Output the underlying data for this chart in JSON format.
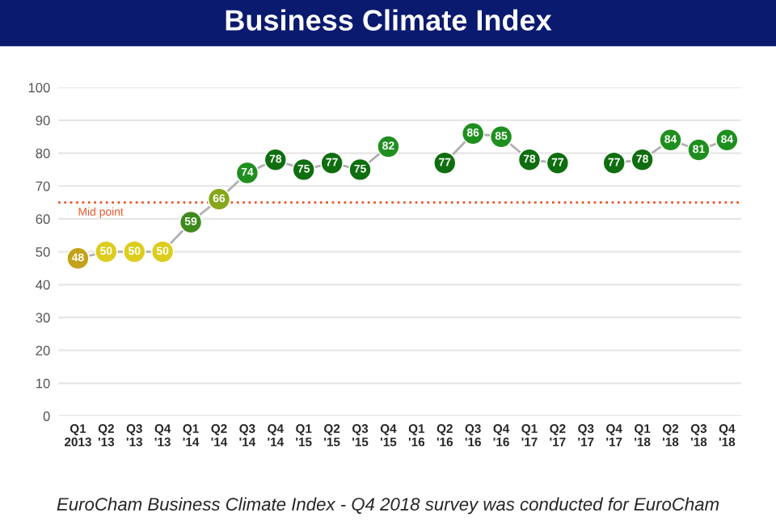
{
  "chart_data": {
    "type": "line",
    "title": "Business Climate Index",
    "categories": [
      "Q1\n2013",
      "Q2\n'13",
      "Q3\n'13",
      "Q4\n'13",
      "Q1\n'14",
      "Q2\n'14",
      "Q3\n'14",
      "Q4\n'14",
      "Q1\n'15",
      "Q2\n'15",
      "Q3\n'15",
      "Q4\n'15",
      "Q1\n'16",
      "Q2\n'16",
      "Q3\n'16",
      "Q4\n'16",
      "Q1\n'17",
      "Q2\n'17",
      "Q3\n'17",
      "Q4\n'17",
      "Q1\n'18",
      "Q2\n'18",
      "Q3\n'18",
      "Q4\n'18"
    ],
    "series": [
      {
        "color": "#b0b0b0",
        "values": [
          48,
          50,
          50,
          50,
          59,
          66,
          74,
          78,
          75,
          77,
          75,
          82,
          null,
          77,
          86,
          85,
          78,
          77,
          null,
          77,
          78,
          84,
          81,
          84
        ],
        "colors": [
          "#c4a219",
          "#dccd1e",
          "#dccd1e",
          "#dccd1e",
          "#3f8a1c",
          "#86a61c",
          "#1f8f1f",
          "#0f6e0f",
          "#0f6e0f",
          "#0f6e0f",
          "#0f6e0f",
          "#1f8f1f",
          "#1f8f1f",
          "#0f6e0f",
          "#1f8f1f",
          "#1f8f1f",
          "#0f6e0f",
          "#0f6e0f",
          "#0f6e0f",
          "#0f6e0f",
          "#0f6e0f",
          "#1f8f1f",
          "#1f8f1f",
          "#1f8f1f"
        ]
      }
    ],
    "ylim": [
      0,
      100
    ],
    "yticks": [
      0,
      10,
      20,
      30,
      40,
      50,
      60,
      70,
      80,
      90,
      100
    ],
    "grid": "y",
    "marker": "circle",
    "data_labels": true,
    "ref_lines": [
      {
        "axis": "y",
        "value": 65,
        "label": "Mid point",
        "color": "#e8572a",
        "line_style": "dotted"
      }
    ],
    "annotations": [
      "EuroCham Business Climate Index - Q4 2018 survey was conducted for EuroCham"
    ]
  }
}
